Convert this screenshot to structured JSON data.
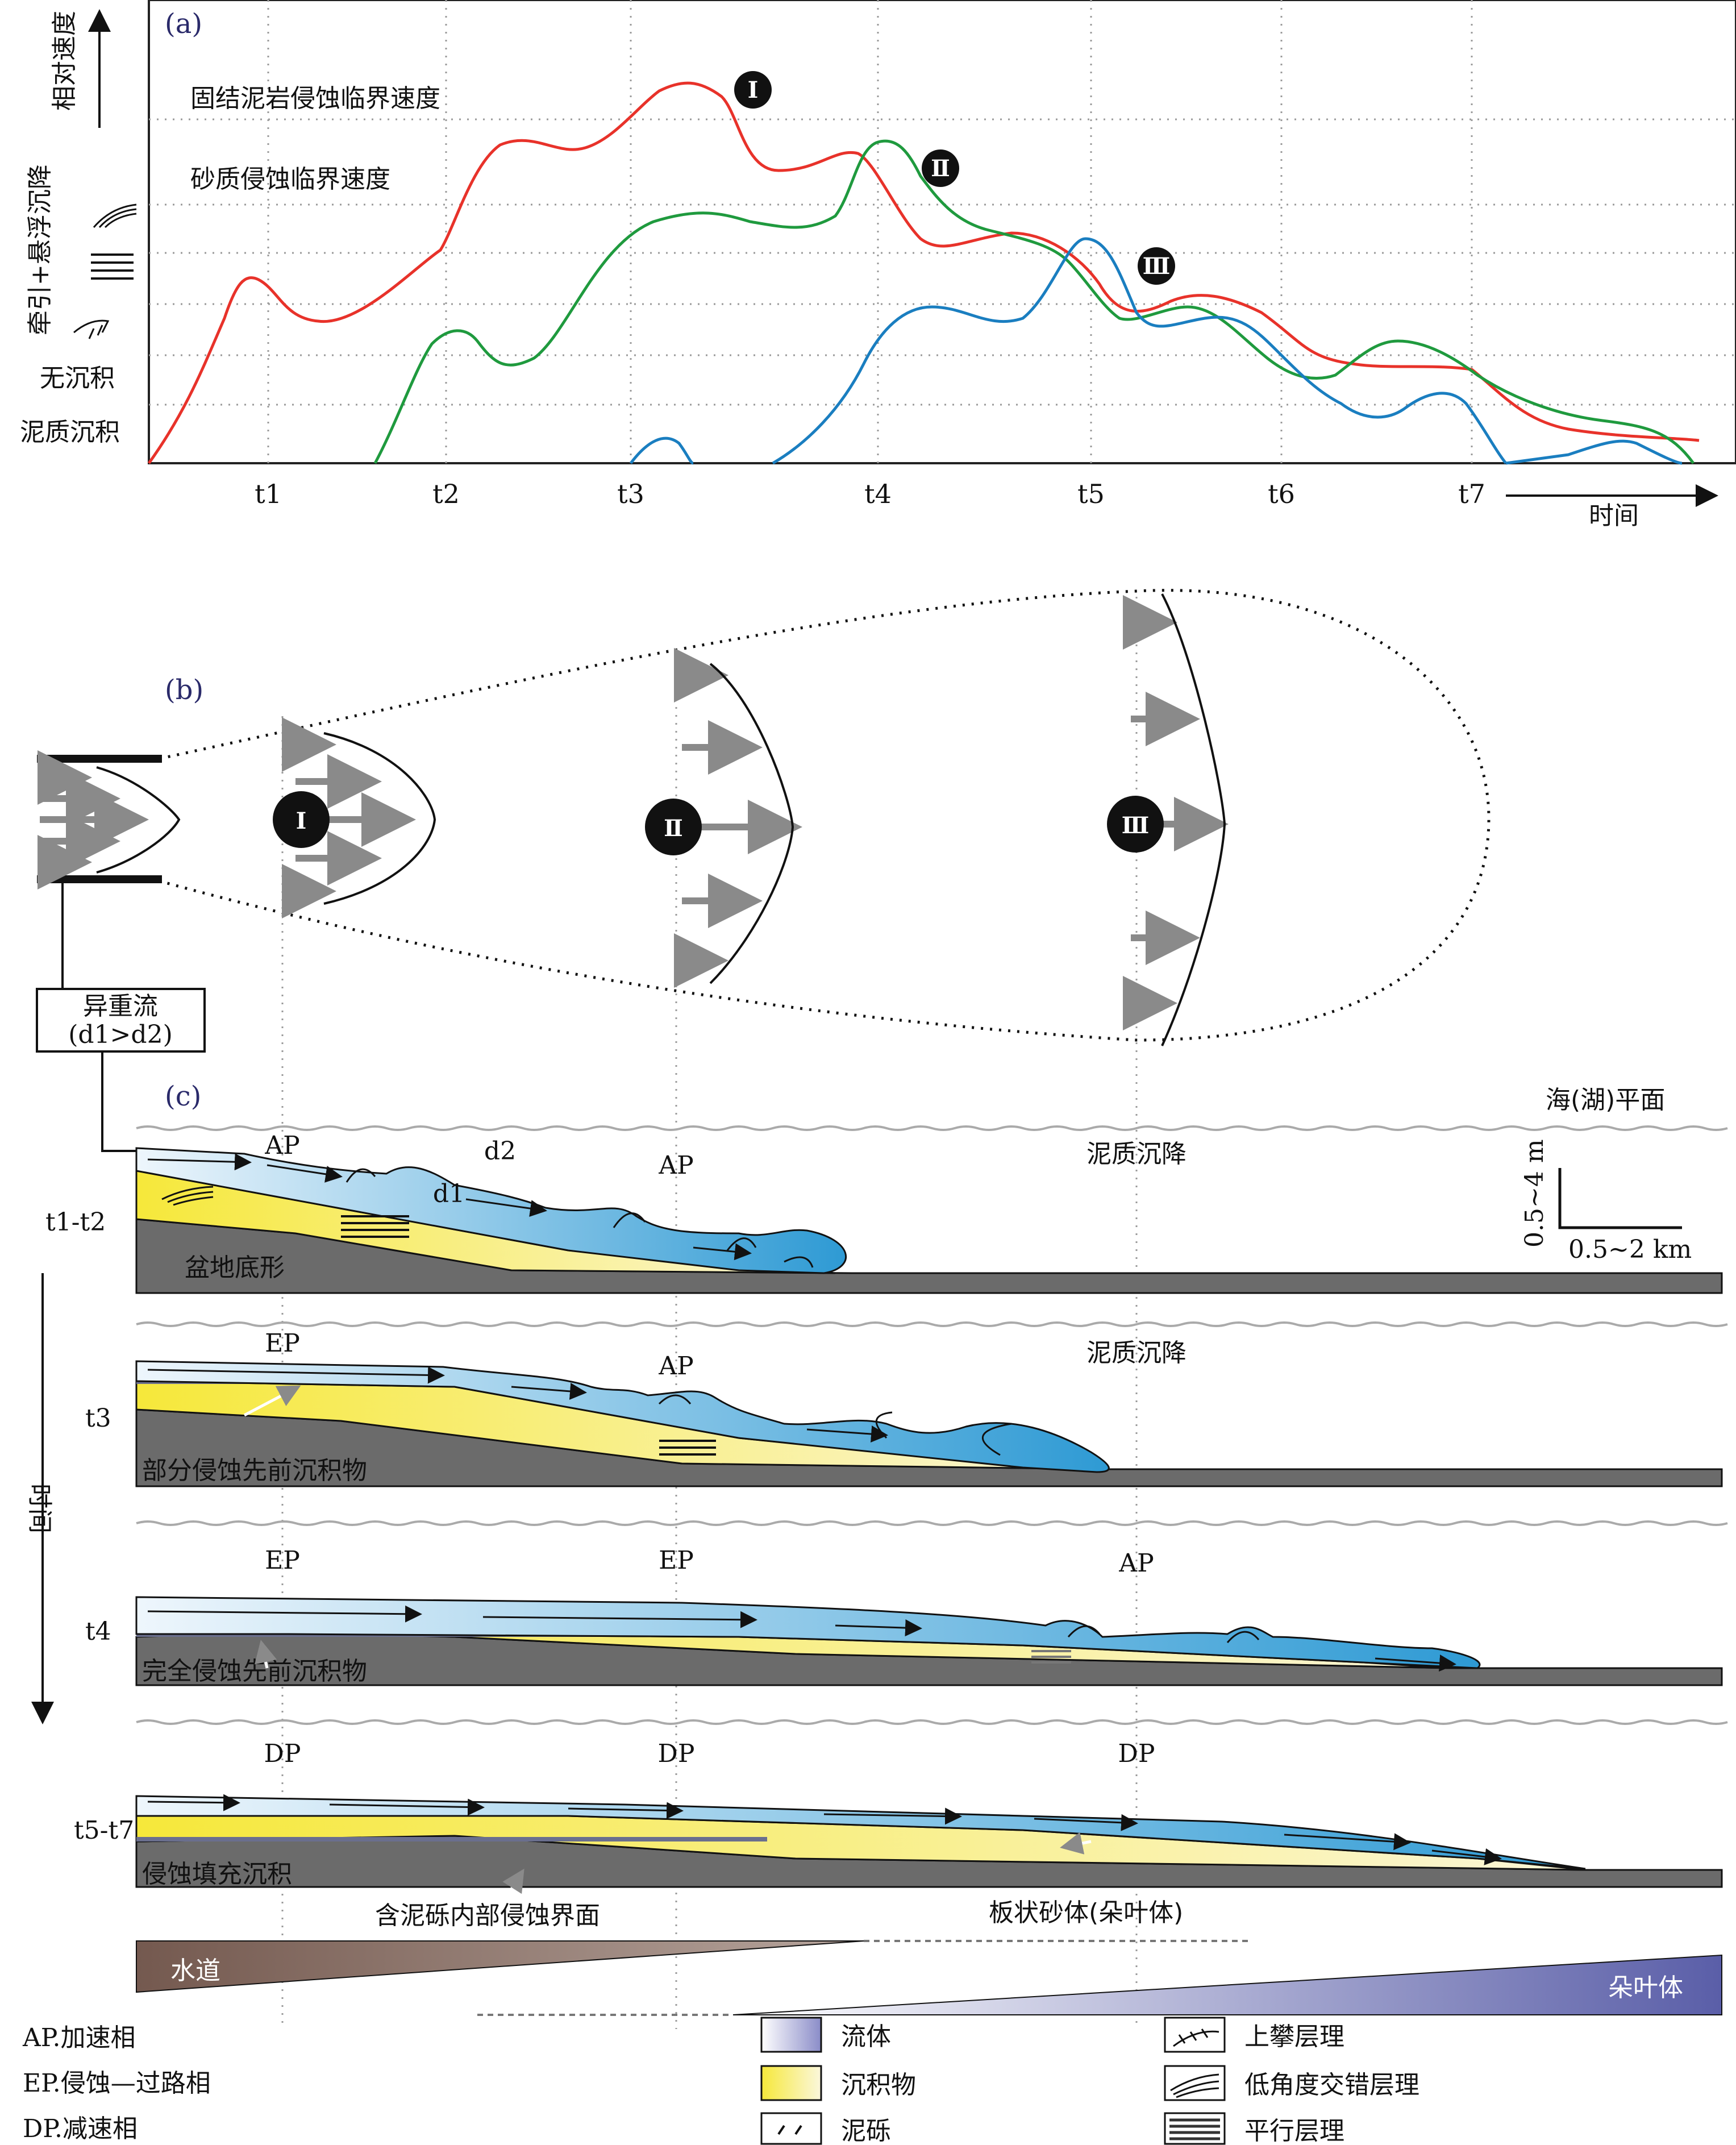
{
  "panel_a": {
    "label": "(a)",
    "y_axis_title": "相对速度",
    "y_levels": [
      "牵引+悬浮沉降",
      "无沉积",
      "泥质沉积"
    ],
    "threshold_labels": [
      "固结泥岩侵蚀临界速度",
      "砂质侵蚀临界速度"
    ],
    "ticks": [
      "t1",
      "t2",
      "t3",
      "t4",
      "t5",
      "t6",
      "t7"
    ],
    "x_axis_title": "时间",
    "markers": [
      "Ⅰ",
      "Ⅱ",
      "Ⅲ"
    ],
    "colors": {
      "curve_I": "#e8322a",
      "curve_II": "#1f9a3e",
      "curve_III": "#1a7ec0"
    }
  },
  "panel_b": {
    "label": "(b)",
    "markers": [
      "Ⅰ",
      "Ⅱ",
      "Ⅲ"
    ],
    "source_box_line1": "异重流",
    "source_box_line2": "(d1>d2)"
  },
  "panel_c": {
    "label": "(c)",
    "sea_level": "海(湖)平面",
    "scale_v": "0.5~4 m",
    "scale_h": "0.5~2 km",
    "time_axis": "时间",
    "rows": [
      {
        "time": "t1-t2",
        "phases": [
          "AP",
          "AP"
        ],
        "extra": [
          "d2",
          "d1"
        ],
        "settle": "泥质沉降",
        "base": "盆地底形"
      },
      {
        "time": "t3",
        "phases": [
          "EP",
          "AP"
        ],
        "settle": "泥质沉降",
        "base": "部分侵蚀先前沉积物"
      },
      {
        "time": "t4",
        "phases": [
          "EP",
          "EP",
          "AP"
        ],
        "base": "完全侵蚀先前沉积物"
      },
      {
        "time": "t5-t7",
        "phases": [
          "DP",
          "DP",
          "DP"
        ],
        "base": "侵蚀填充沉积",
        "notes": [
          "含泥砾内部侵蚀界面",
          "板状砂体(朵叶体)"
        ]
      }
    ]
  },
  "wedges": {
    "channel": "水道",
    "lobe": "朵叶体",
    "channel_color": "#7a6258",
    "lobe_color": "#5a5ea8"
  },
  "legend": {
    "abbrev": [
      "AP.加速相",
      "EP.侵蚀—过路相",
      "DP.减速相"
    ],
    "swatches": [
      "流体",
      "沉积物",
      "泥砾"
    ],
    "structures": [
      "上攀层理",
      "低角度交错层理",
      "平行层理"
    ]
  }
}
